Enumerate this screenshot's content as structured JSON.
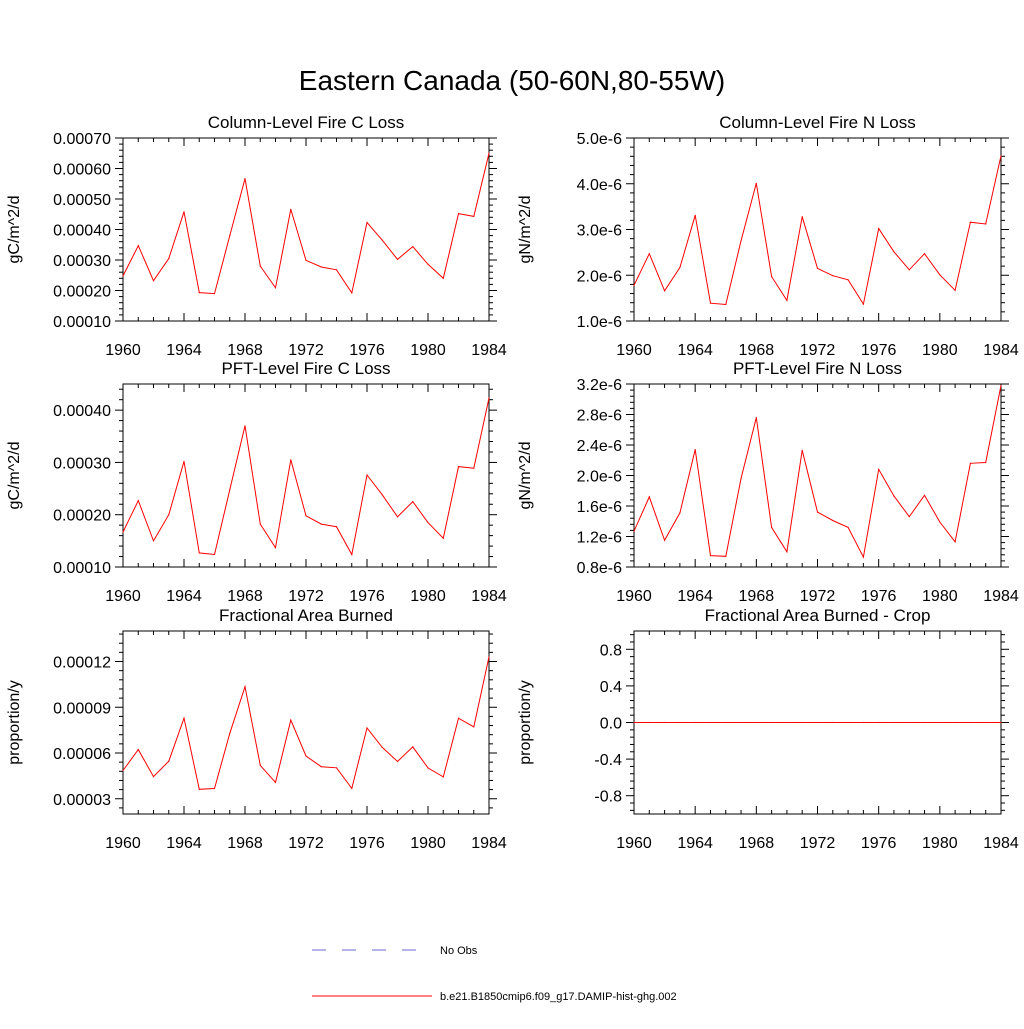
{
  "title": "Eastern Canada (50-60N,80-55W)",
  "legend": {
    "obs_label": "No Obs",
    "obs_color": "#6a6ad2",
    "model_label": "b.e21.B1850cmip6.f09_g17.DAMIP-hist-ghg.002",
    "model_color": "#ff0000"
  },
  "chart_data": [
    {
      "type": "line",
      "title": "Column-Level Fire C Loss",
      "ylabel": "gC/m^2/d",
      "xlim": [
        1960,
        1984
      ],
      "ylim": [
        0.0001,
        0.0007
      ],
      "xticks": [
        1960,
        1964,
        1968,
        1972,
        1976,
        1980,
        1984
      ],
      "yticks": [
        0.0001,
        0.0002,
        0.0003,
        0.0004,
        0.0005,
        0.0006,
        0.0007
      ],
      "ytick_labels": [
        "0.00010",
        "0.00020",
        "0.00030",
        "0.00040",
        "0.00050",
        "0.00060",
        "0.00070"
      ],
      "x": [
        1960,
        1961,
        1962,
        1963,
        1964,
        1965,
        1966,
        1967,
        1968,
        1969,
        1970,
        1971,
        1972,
        1973,
        1974,
        1975,
        1976,
        1977,
        1978,
        1979,
        1980,
        1981,
        1982,
        1983,
        1984
      ],
      "series": [
        {
          "values": [
            0.000248,
            0.000347,
            0.000232,
            0.000305,
            0.000458,
            0.000193,
            0.00019,
            0.00038,
            0.000567,
            0.00028,
            0.000209,
            0.000466,
            0.000299,
            0.000277,
            0.000268,
            0.000192,
            0.000423,
            0.000365,
            0.000302,
            0.000344,
            0.000286,
            0.00024,
            0.000452,
            0.000443,
            0.00065
          ]
        }
      ]
    },
    {
      "type": "line",
      "title": "Column-Level Fire N Loss",
      "ylabel": "gN/m^2/d",
      "xlim": [
        1960,
        1984
      ],
      "ylim": [
        1e-06,
        5e-06
      ],
      "xticks": [
        1960,
        1964,
        1968,
        1972,
        1976,
        1980,
        1984
      ],
      "yticks": [
        1e-06,
        2e-06,
        3e-06,
        4e-06,
        5e-06
      ],
      "ytick_labels": [
        "1.0e-6",
        "2.0e-6",
        "3.0e-6",
        "4.0e-6",
        "5.0e-6"
      ],
      "x": [
        1960,
        1961,
        1962,
        1963,
        1964,
        1965,
        1966,
        1967,
        1968,
        1969,
        1970,
        1971,
        1972,
        1973,
        1974,
        1975,
        1976,
        1977,
        1978,
        1979,
        1980,
        1981,
        1982,
        1983,
        1984
      ],
      "series": [
        {
          "values": [
            1.78e-06,
            2.47e-06,
            1.66e-06,
            2.17e-06,
            3.31e-06,
            1.39e-06,
            1.36e-06,
            2.75e-06,
            4.01e-06,
            1.97e-06,
            1.45e-06,
            3.28e-06,
            2.15e-06,
            1.99e-06,
            1.9e-06,
            1.37e-06,
            3.02e-06,
            2.51e-06,
            2.12e-06,
            2.47e-06,
            2.01e-06,
            1.67e-06,
            3.16e-06,
            3.12e-06,
            4.61e-06
          ]
        }
      ]
    },
    {
      "type": "line",
      "title": "PFT-Level Fire C Loss",
      "ylabel": "gC/m^2/d",
      "xlim": [
        1960,
        1984
      ],
      "ylim": [
        0.0001,
        0.00045
      ],
      "xticks": [
        1960,
        1964,
        1968,
        1972,
        1976,
        1980,
        1984
      ],
      "yticks": [
        0.0001,
        0.0002,
        0.0003,
        0.0004
      ],
      "ytick_labels": [
        "0.00010",
        "0.00020",
        "0.00030",
        "0.00040"
      ],
      "x": [
        1960,
        1961,
        1962,
        1963,
        1964,
        1965,
        1966,
        1967,
        1968,
        1969,
        1970,
        1971,
        1972,
        1973,
        1974,
        1975,
        1976,
        1977,
        1978,
        1979,
        1980,
        1981,
        1982,
        1983,
        1984
      ],
      "series": [
        {
          "values": [
            0.000167,
            0.000227,
            0.00015,
            0.0002,
            0.000302,
            0.000127,
            0.000124,
            0.000248,
            0.00037,
            0.000182,
            0.000137,
            0.000305,
            0.000198,
            0.000182,
            0.000177,
            0.000124,
            0.000276,
            0.000238,
            0.000196,
            0.000225,
            0.000185,
            0.000155,
            0.000292,
            0.000289,
            0.000423
          ]
        }
      ]
    },
    {
      "type": "line",
      "title": "PFT-Level Fire N Loss",
      "ylabel": "gN/m^2/d",
      "xlim": [
        1960,
        1984
      ],
      "ylim": [
        8e-07,
        3.2e-06
      ],
      "xticks": [
        1960,
        1964,
        1968,
        1972,
        1976,
        1980,
        1984
      ],
      "yticks": [
        8e-07,
        1.2e-06,
        1.6e-06,
        2e-06,
        2.4e-06,
        2.8e-06,
        3.2e-06
      ],
      "ytick_labels": [
        "0.8e-6",
        "1.2e-6",
        "1.6e-6",
        "2.0e-6",
        "2.4e-6",
        "2.8e-6",
        "3.2e-6"
      ],
      "x": [
        1960,
        1961,
        1962,
        1963,
        1964,
        1965,
        1966,
        1967,
        1968,
        1969,
        1970,
        1971,
        1972,
        1973,
        1974,
        1975,
        1976,
        1977,
        1978,
        1979,
        1980,
        1981,
        1982,
        1983,
        1984
      ],
      "series": [
        {
          "values": [
            1.27e-06,
            1.72e-06,
            1.15e-06,
            1.51e-06,
            2.34e-06,
            9.5e-07,
            9.4e-07,
            1.96e-06,
            2.76e-06,
            1.32e-06,
            1e-06,
            2.33e-06,
            1.52e-06,
            1.41e-06,
            1.32e-06,
            9.3e-07,
            2.08e-06,
            1.73e-06,
            1.46e-06,
            1.74e-06,
            1.39e-06,
            1.13e-06,
            2.16e-06,
            2.17e-06,
            3.18e-06
          ]
        }
      ]
    },
    {
      "type": "line",
      "title": "Fractional Area Burned",
      "ylabel": "proportion/y",
      "xlim": [
        1960,
        1984
      ],
      "ylim": [
        2e-05,
        0.00014
      ],
      "xticks": [
        1960,
        1964,
        1968,
        1972,
        1976,
        1980,
        1984
      ],
      "yticks": [
        3e-05,
        6e-05,
        9e-05,
        0.00012
      ],
      "ytick_labels": [
        "0.00003",
        "0.00006",
        "0.00009",
        "0.00012"
      ],
      "x": [
        1960,
        1961,
        1962,
        1963,
        1964,
        1965,
        1966,
        1967,
        1968,
        1969,
        1970,
        1971,
        1972,
        1973,
        1974,
        1975,
        1976,
        1977,
        1978,
        1979,
        1980,
        1981,
        1982,
        1983,
        1984
      ],
      "series": [
        {
          "values": [
            4.85e-05,
            6.22e-05,
            4.45e-05,
            5.46e-05,
            8.28e-05,
            3.62e-05,
            3.67e-05,
            7.29e-05,
            0.0001035,
            5.19e-05,
            4.07e-05,
            8.16e-05,
            5.8e-05,
            5.1e-05,
            5.03e-05,
            3.68e-05,
            7.64e-05,
            6.37e-05,
            5.44e-05,
            6.4e-05,
            5.02e-05,
            4.43e-05,
            8.28e-05,
            7.72e-05,
            0.000123
          ]
        }
      ]
    },
    {
      "type": "line",
      "title": "Fractional Area Burned - Crop",
      "ylabel": "proportion/y",
      "xlim": [
        1960,
        1984
      ],
      "ylim": [
        -1.0,
        1.0
      ],
      "xticks": [
        1960,
        1964,
        1968,
        1972,
        1976,
        1980,
        1984
      ],
      "yticks": [
        -0.8,
        -0.4,
        0.0,
        0.4,
        0.8
      ],
      "ytick_labels": [
        "-0.8",
        "-0.4",
        "0.0",
        "0.4",
        "0.8"
      ],
      "x": [
        1960,
        1961,
        1962,
        1963,
        1964,
        1965,
        1966,
        1967,
        1968,
        1969,
        1970,
        1971,
        1972,
        1973,
        1974,
        1975,
        1976,
        1977,
        1978,
        1979,
        1980,
        1981,
        1982,
        1983,
        1984
      ],
      "series": [
        {
          "values": [
            0,
            0,
            0,
            0,
            0,
            0,
            0,
            0,
            0,
            0,
            0,
            0,
            0,
            0,
            0,
            0,
            0,
            0,
            0,
            0,
            0,
            0,
            0,
            0,
            0
          ]
        }
      ]
    }
  ]
}
